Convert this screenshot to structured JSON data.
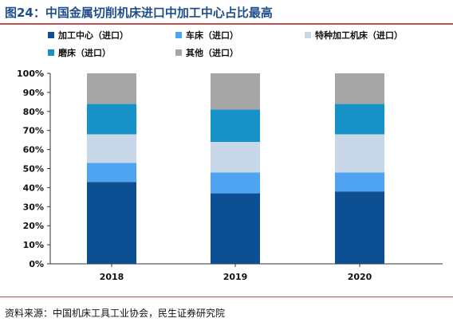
{
  "header": {
    "title": "图24：中国金属切削机床进口中加工中心占比最高"
  },
  "chart_data": {
    "type": "bar",
    "stacked": true,
    "categories": [
      "2018",
      "2019",
      "2020"
    ],
    "series": [
      {
        "name": "加工中心（进口）",
        "color": "#0c4f93",
        "values": [
          43,
          37,
          38
        ]
      },
      {
        "name": "车床（进口）",
        "color": "#4ea4f0",
        "values": [
          10,
          11,
          10
        ]
      },
      {
        "name": "特种加工机床（进口）",
        "color": "#c9d8e8",
        "values": [
          15,
          16,
          20
        ]
      },
      {
        "name": "磨床（进口）",
        "color": "#1692c8",
        "values": [
          16,
          17,
          16
        ]
      },
      {
        "name": "其他（进口）",
        "color": "#a6a6a6",
        "values": [
          16,
          19,
          16
        ]
      }
    ],
    "yticks": [
      "0%",
      "10%",
      "20%",
      "30%",
      "40%",
      "50%",
      "60%",
      "70%",
      "80%",
      "90%",
      "100%"
    ],
    "ylim": [
      0,
      100
    ],
    "legend_position": "top",
    "grid": false
  },
  "footer": {
    "source": "资料来源：中国机床工具工业协会，民生证券研究院"
  }
}
